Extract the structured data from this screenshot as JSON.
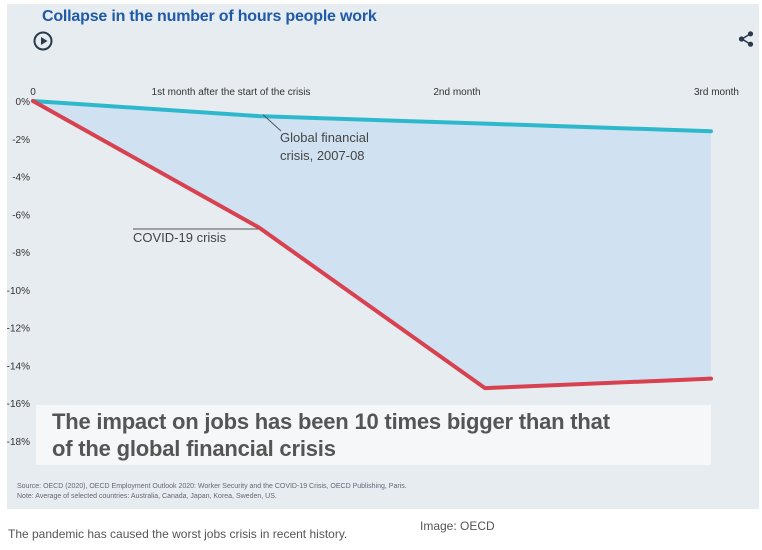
{
  "title": "Collapse in the number of hours people work",
  "icons": {
    "play": "play-icon",
    "share": "share-icon"
  },
  "colors": {
    "financial": "#2eb8cc",
    "covid": "#d8414f",
    "fill": "#cfe1f1",
    "title": "#1e5aa8"
  },
  "chart_data": {
    "type": "line",
    "x": [
      0,
      1,
      2,
      3
    ],
    "x_tick_labels": [
      "0",
      "1st month after the start of the crisis",
      "2nd month",
      "3rd month"
    ],
    "y_tick_labels": [
      "0%",
      "-2%",
      "-4%",
      "-6%",
      "-8%",
      "-10%",
      "-12%",
      "-14%",
      "-16%",
      "-18%"
    ],
    "y_ticks": [
      0,
      -2,
      -4,
      -6,
      -8,
      -10,
      -12,
      -14,
      -16,
      -18
    ],
    "ylim": [
      -18,
      0
    ],
    "xlim": [
      0,
      3
    ],
    "grid": false,
    "series": [
      {
        "name": "Global financial crisis, 2007-08",
        "label_lines": [
          "Global financial",
          "crisis, 2007-08"
        ],
        "x": [
          0,
          1,
          2,
          3
        ],
        "y": [
          0,
          -0.8,
          -1.2,
          -1.6
        ]
      },
      {
        "name": "COVID-19 crisis",
        "label_lines": [
          "COVID-19 crisis"
        ],
        "x": [
          0,
          1,
          2,
          3
        ],
        "y": [
          0,
          -6.7,
          -15.2,
          -14.7
        ]
      }
    ]
  },
  "callout": {
    "line1": "The impact on jobs has been 10 times bigger than that",
    "line2": "of the global financial crisis"
  },
  "source": {
    "line1": "Source: OECD (2020), OECD Employment Outlook 2020: Worker Security and the COVID-19 Crisis, OECD Publishing, Paris.",
    "line2": "Note: Average of selected countries: Australia, Canada, Japan, Korea, Sweden, US."
  },
  "caption": "The pandemic has caused the worst jobs crisis in recent history.",
  "credit": "Image: OECD"
}
